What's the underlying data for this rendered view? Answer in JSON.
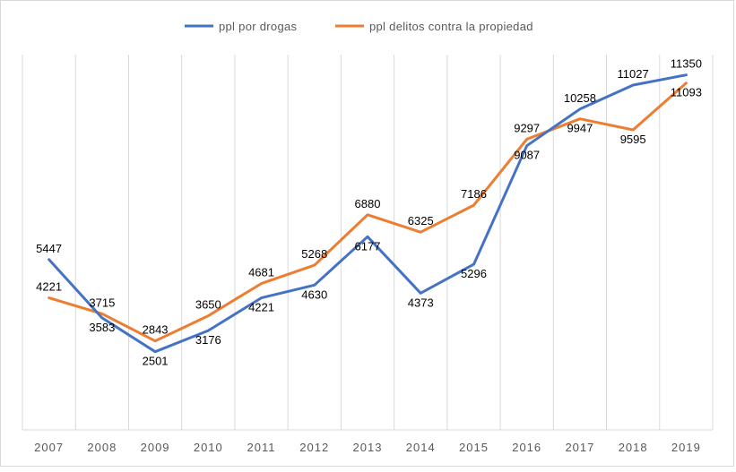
{
  "chart_data": {
    "type": "line",
    "title": "",
    "xlabel": "",
    "ylabel": "",
    "categories": [
      "2007",
      "2008",
      "2009",
      "2010",
      "2011",
      "2012",
      "2013",
      "2014",
      "2015",
      "2016",
      "2017",
      "2018",
      "2019"
    ],
    "series": [
      {
        "name": "ppl por drogas",
        "color": "#4472C4",
        "values": [
          5447,
          3583,
          2501,
          3176,
          4221,
          4630,
          6177,
          4373,
          5296,
          9087,
          10258,
          11027,
          11350
        ]
      },
      {
        "name": "ppl delitos contra la propiedad",
        "color": "#ED7D31",
        "values": [
          4221,
          3715,
          2843,
          3650,
          4681,
          5268,
          6880,
          6325,
          7186,
          9297,
          9947,
          9595,
          11093
        ]
      }
    ],
    "ylim": [
      0,
      12000
    ],
    "grid": "vertical",
    "legend": "top-center",
    "colors": {
      "gridline": "#d9d9d9",
      "axis_text": "#595959"
    }
  }
}
